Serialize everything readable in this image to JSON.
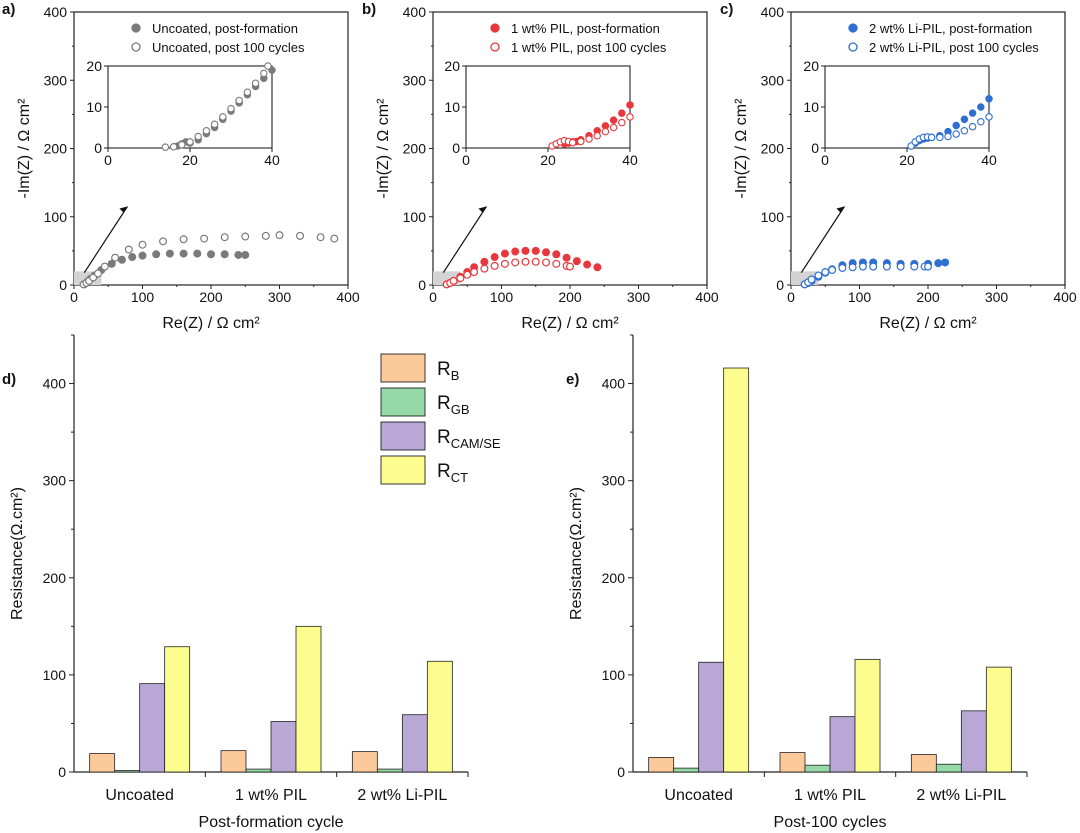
{
  "colors": {
    "uncoated": "#7a7a7a",
    "pil": "#e8383d",
    "lipil": "#2f6fd1",
    "rb": "#fcc99a",
    "rgb": "#95d9a6",
    "rcam": "#b9a7d6",
    "rct": "#fdfd8f",
    "shade": "#d3d3d3"
  },
  "chart_data": [
    {
      "type": "scatter",
      "panel_label": "a)",
      "xlabel": "Re(Z) / Ω cm²",
      "ylabel": "-Im(Z) / Ω cm²",
      "xlim": [
        0,
        400
      ],
      "ylim": [
        0,
        400
      ],
      "xticks": [
        "0",
        "100",
        "200",
        "300",
        "400"
      ],
      "yticks": [
        "0",
        "100",
        "200",
        "300",
        "400"
      ],
      "series": [
        {
          "name": "Uncoated, post-formation",
          "marker": "filled",
          "color": "#7a7a7a",
          "x": [
            15,
            18,
            20,
            24,
            30,
            40,
            55,
            70,
            85,
            100,
            120,
            140,
            160,
            180,
            200,
            220,
            240,
            250
          ],
          "y": [
            1,
            3,
            5,
            9,
            14,
            22,
            31,
            37,
            41,
            43,
            45,
            46,
            46,
            46,
            45,
            45,
            44,
            44
          ]
        },
        {
          "name": "Uncoated, post 100 cycles",
          "marker": "open",
          "color": "#7a7a7a",
          "x": [
            14,
            18,
            22,
            28,
            35,
            45,
            60,
            80,
            100,
            130,
            160,
            190,
            220,
            250,
            280,
            300,
            330,
            360,
            380
          ],
          "y": [
            1,
            3,
            6,
            11,
            17,
            27,
            40,
            52,
            59,
            64,
            67,
            68,
            70,
            71,
            72,
            73,
            72,
            70,
            68
          ]
        }
      ],
      "inset": {
        "xlim": [
          0,
          40
        ],
        "ylim": [
          0,
          20
        ],
        "xticks": [
          "0",
          "20",
          "40"
        ],
        "yticks": [
          "0",
          "10",
          "20"
        ],
        "series": [
          {
            "x": [
              17,
              18,
              19,
              20,
              22,
              24,
              26,
              28,
              30,
              32,
              34,
              36,
              38,
              40
            ],
            "y": [
              0.5,
              1,
              1.5,
              1.2,
              2,
              3.5,
              5,
              7,
              9,
              11,
              13,
              15,
              17,
              19
            ]
          },
          {
            "x": [
              14,
              16,
              18,
              20,
              22,
              24,
              26,
              28,
              30,
              32,
              34,
              36,
              38,
              39
            ],
            "y": [
              0.2,
              0.3,
              0.8,
              1.5,
              2.8,
              4.2,
              5.8,
              7.6,
              9.6,
              11.6,
              13.6,
              15.8,
              18.2,
              20
            ]
          }
        ]
      }
    },
    {
      "type": "scatter",
      "panel_label": "b)",
      "xlabel": "Re(Z) / Ω cm²",
      "ylabel": "-Im(Z) / Ω cm²",
      "xlim": [
        0,
        400
      ],
      "ylim": [
        0,
        400
      ],
      "xticks": [
        "0",
        "100",
        "200",
        "300",
        "400"
      ],
      "yticks": [
        "0",
        "100",
        "200",
        "300",
        "400"
      ],
      "series": [
        {
          "name": "1 wt% PIL, post-formation",
          "marker": "filled",
          "color": "#e8383d",
          "x": [
            20,
            25,
            30,
            40,
            50,
            60,
            75,
            90,
            105,
            120,
            135,
            150,
            165,
            180,
            195,
            210,
            225,
            240
          ],
          "y": [
            1,
            3,
            6,
            12,
            19,
            26,
            34,
            41,
            46,
            49,
            50,
            50,
            48,
            45,
            40,
            35,
            30,
            26
          ]
        },
        {
          "name": "1 wt% PIL, post 100 cycles",
          "marker": "open",
          "color": "#e8383d",
          "x": [
            20,
            25,
            30,
            40,
            50,
            60,
            75,
            90,
            105,
            120,
            135,
            150,
            165,
            180,
            195,
            200
          ],
          "y": [
            1,
            3,
            6,
            10,
            15,
            19,
            24,
            28,
            31,
            33,
            34,
            34,
            33,
            31,
            28,
            27
          ]
        }
      ],
      "inset": {
        "xlim": [
          0,
          40
        ],
        "ylim": [
          0,
          20
        ],
        "xticks": [
          "0",
          "20",
          "40"
        ],
        "yticks": [
          "0",
          "10",
          "20"
        ],
        "series": [
          {
            "x": [
              24,
              25,
              26,
              27,
              28,
              30,
              32,
              34,
              36,
              38,
              40
            ],
            "y": [
              1,
              1.2,
              1.5,
              1.6,
              2,
              3,
              4.2,
              5.4,
              6.8,
              8.5,
              10.5
            ]
          },
          {
            "x": [
              21,
              22,
              23,
              24,
              25,
              26,
              28,
              30,
              32,
              34,
              36,
              38,
              40
            ],
            "y": [
              0.5,
              1,
              1.5,
              1.8,
              1.6,
              1.3,
              1.6,
              2.2,
              3,
              4,
              5,
              6.2,
              7.6
            ]
          }
        ]
      }
    },
    {
      "type": "scatter",
      "panel_label": "c)",
      "xlabel": "Re(Z) / Ω cm²",
      "ylabel": "-Im(Z) / Ω cm²",
      "xlim": [
        0,
        400
      ],
      "ylim": [
        0,
        400
      ],
      "xticks": [
        "0",
        "100",
        "200",
        "300",
        "400"
      ],
      "yticks": [
        "0",
        "100",
        "200",
        "300",
        "400"
      ],
      "series": [
        {
          "name": "2 wt% Li-PIL, post-formation",
          "marker": "filled",
          "color": "#2f6fd1",
          "x": [
            20,
            25,
            30,
            40,
            50,
            60,
            75,
            90,
            105,
            120,
            140,
            160,
            180,
            200,
            215,
            225
          ],
          "y": [
            1,
            3,
            6,
            12,
            18,
            23,
            29,
            32,
            33,
            33,
            32,
            31,
            31,
            31,
            32,
            33
          ]
        },
        {
          "name": "2 wt% Li-PIL, post 100 cycles",
          "marker": "open",
          "color": "#2f6fd1",
          "x": [
            20,
            25,
            30,
            40,
            50,
            60,
            75,
            90,
            105,
            120,
            140,
            160,
            180,
            195,
            200
          ],
          "y": [
            1,
            4,
            8,
            14,
            19,
            22,
            25,
            26,
            27,
            27,
            27,
            27,
            27,
            27,
            27
          ]
        }
      ],
      "inset": {
        "xlim": [
          0,
          40
        ],
        "ylim": [
          0,
          20
        ],
        "xticks": [
          "0",
          "20",
          "40"
        ],
        "yticks": [
          "0",
          "10",
          "20"
        ],
        "series": [
          {
            "x": [
              22,
              23,
              24,
              25,
              26,
              28,
              30,
              32,
              34,
              36,
              38,
              40
            ],
            "y": [
              1.2,
              1.8,
              2.2,
              2.4,
              2.6,
              3,
              4,
              5.5,
              7,
              8.5,
              10,
              12
            ]
          },
          {
            "x": [
              21,
              22,
              23,
              24,
              25,
              26,
              28,
              30,
              32,
              34,
              36,
              38,
              40
            ],
            "y": [
              0.5,
              1.5,
              2.2,
              2.6,
              2.7,
              2.6,
              2.6,
              2.8,
              3.4,
              4.2,
              5.2,
              6.4,
              7.6
            ]
          }
        ]
      }
    },
    {
      "type": "bar",
      "panel_label": "d)",
      "xlabel": "Post-formation cycle",
      "ylabel": "Resistance(Ω.cm²)",
      "ylim": [
        0,
        450
      ],
      "yticks": [
        "0",
        "100",
        "200",
        "300",
        "400"
      ],
      "categories": [
        "Uncoated",
        "1 wt% PIL",
        "2 wt% Li-PIL"
      ],
      "legend": [
        {
          "base": "R",
          "sub": "B"
        },
        {
          "base": "R",
          "sub": "GB"
        },
        {
          "base": "R",
          "sub": "CAM/SE"
        },
        {
          "base": "R",
          "sub": "CT"
        }
      ],
      "series": [
        {
          "name": "RB",
          "values": [
            19,
            22,
            21
          ]
        },
        {
          "name": "RGB",
          "values": [
            1.5,
            3,
            3
          ]
        },
        {
          "name": "RCAM/SE",
          "values": [
            91,
            52,
            59
          ]
        },
        {
          "name": "RCT",
          "values": [
            129,
            150,
            114
          ]
        }
      ]
    },
    {
      "type": "bar",
      "panel_label": "e)",
      "xlabel": "Post-100 cycles",
      "ylabel": "Resistance(Ω.cm²)",
      "ylim": [
        0,
        450
      ],
      "yticks": [
        "0",
        "100",
        "200",
        "300",
        "400"
      ],
      "categories": [
        "Uncoated",
        "1 wt% PIL",
        "2 wt% Li-PIL"
      ],
      "series": [
        {
          "name": "RB",
          "values": [
            15,
            20,
            18
          ]
        },
        {
          "name": "RGB",
          "values": [
            4,
            7,
            8
          ]
        },
        {
          "name": "RCAM/SE",
          "values": [
            113,
            57,
            63
          ]
        },
        {
          "name": "RCT",
          "values": [
            416,
            116,
            108
          ]
        }
      ]
    }
  ]
}
